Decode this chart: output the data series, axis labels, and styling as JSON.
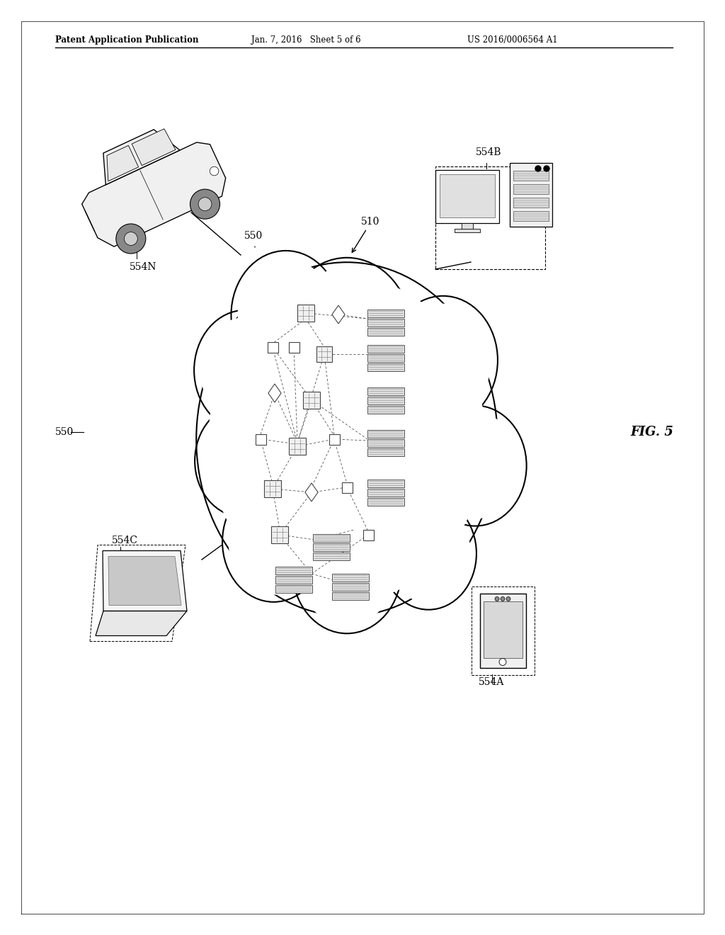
{
  "bg_color": "#ffffff",
  "header_left": "Patent Application Publication",
  "header_mid": "Jan. 7, 2016   Sheet 5 of 6",
  "header_right": "US 2016/0006564 A1",
  "fig_label": "FIG. 5",
  "label_510": "510",
  "label_550_arrow": "550",
  "label_550_outer": "550",
  "label_554N": "554N",
  "label_554B": "554B",
  "label_554C": "554C",
  "label_554A": "554A"
}
